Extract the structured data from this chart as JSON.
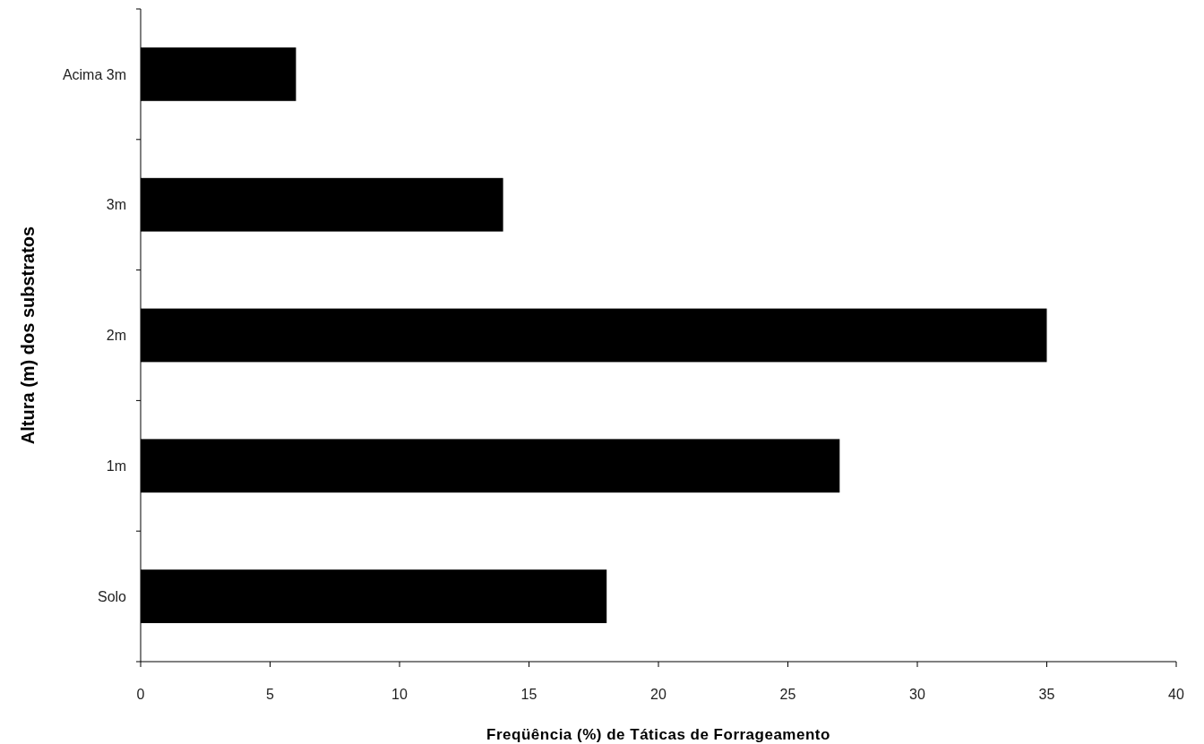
{
  "chart_data": {
    "type": "bar",
    "orientation": "horizontal",
    "xlabel": "Freqüência (%) de Táticas de Forrageamento",
    "ylabel": "Altura (m) dos substratos",
    "categories": [
      "Acima 3m",
      "3m",
      "2m",
      "1m",
      "Solo"
    ],
    "values": [
      6,
      14,
      35,
      27,
      18
    ],
    "color": "#000000",
    "xlim": [
      0,
      40
    ],
    "xticks": [
      0,
      5,
      10,
      15,
      20,
      25,
      30,
      35,
      40
    ]
  }
}
